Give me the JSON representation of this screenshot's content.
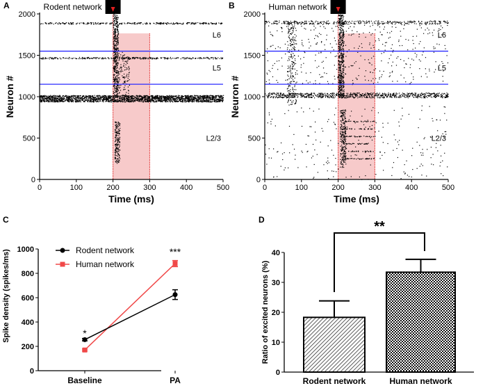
{
  "chart_data": [
    {
      "panel": "A",
      "type": "scatter",
      "title": "Rodent network",
      "xlabel": "Time (ms)",
      "ylabel": "Neuron #",
      "xlim": [
        0,
        500
      ],
      "ylim": [
        0,
        2000
      ],
      "xticks": [
        "0",
        "100",
        "200",
        "300",
        "400",
        "500"
      ],
      "yticks": [
        "0",
        "500",
        "1000",
        "1500",
        "2000"
      ],
      "stimulus_window_ms": [
        200,
        300
      ],
      "stimulus_onset_ms": 200,
      "layer_boundaries": [
        1150,
        1550
      ],
      "layers": [
        {
          "label": "L6",
          "y": 1750
        },
        {
          "label": "L5",
          "y": 1350
        },
        {
          "label": "L2/3",
          "y": 500
        }
      ],
      "colors": {
        "spike": "#000000",
        "boundary": "#2b2bff",
        "window": "#f6c9c9",
        "window_edge": "#e02020"
      }
    },
    {
      "panel": "B",
      "type": "scatter",
      "title": "Human network",
      "xlabel": "Time (ms)",
      "ylabel": "Neuron #",
      "xlim": [
        0,
        500
      ],
      "ylim": [
        0,
        2000
      ],
      "xticks": [
        "0",
        "100",
        "200",
        "300",
        "400",
        "500"
      ],
      "yticks": [
        "0",
        "500",
        "1000",
        "1500",
        "2000"
      ],
      "stimulus_window_ms": [
        200,
        300
      ],
      "stimulus_onset_ms": 200,
      "layer_boundaries": [
        1150,
        1550
      ],
      "layers": [
        {
          "label": "L6",
          "y": 1750
        },
        {
          "label": "L5",
          "y": 1350
        },
        {
          "label": "L2/3",
          "y": 500
        }
      ]
    },
    {
      "panel": "C",
      "type": "line",
      "ylabel": "Spike density (spikes/ms)",
      "xlabel": "",
      "categories": [
        "Baseline",
        "PA"
      ],
      "ylim": [
        0,
        1000
      ],
      "yticks": [
        "0",
        "200",
        "400",
        "600",
        "800",
        "1000"
      ],
      "series": [
        {
          "name": "Rodent network",
          "values": [
            255,
            625
          ],
          "errors": [
            10,
            40
          ],
          "color": "#000000",
          "marker": "circle"
        },
        {
          "name": "Human network",
          "values": [
            170,
            880
          ],
          "errors": [
            8,
            25
          ],
          "color": "#f04848",
          "marker": "square"
        }
      ],
      "annotations": [
        "*",
        "***"
      ],
      "legend": "top-left"
    },
    {
      "panel": "D",
      "type": "bar",
      "ylabel": "Ratio of excited neurons (%)",
      "xlabel": "",
      "categories": [
        "Rodent network",
        "Human network"
      ],
      "values": [
        18.3,
        33.4
      ],
      "errors": [
        5.5,
        4.3
      ],
      "ylim": [
        0,
        40
      ],
      "yticks": [
        "0",
        "10",
        "20",
        "30",
        "40"
      ],
      "significance": "**"
    }
  ]
}
